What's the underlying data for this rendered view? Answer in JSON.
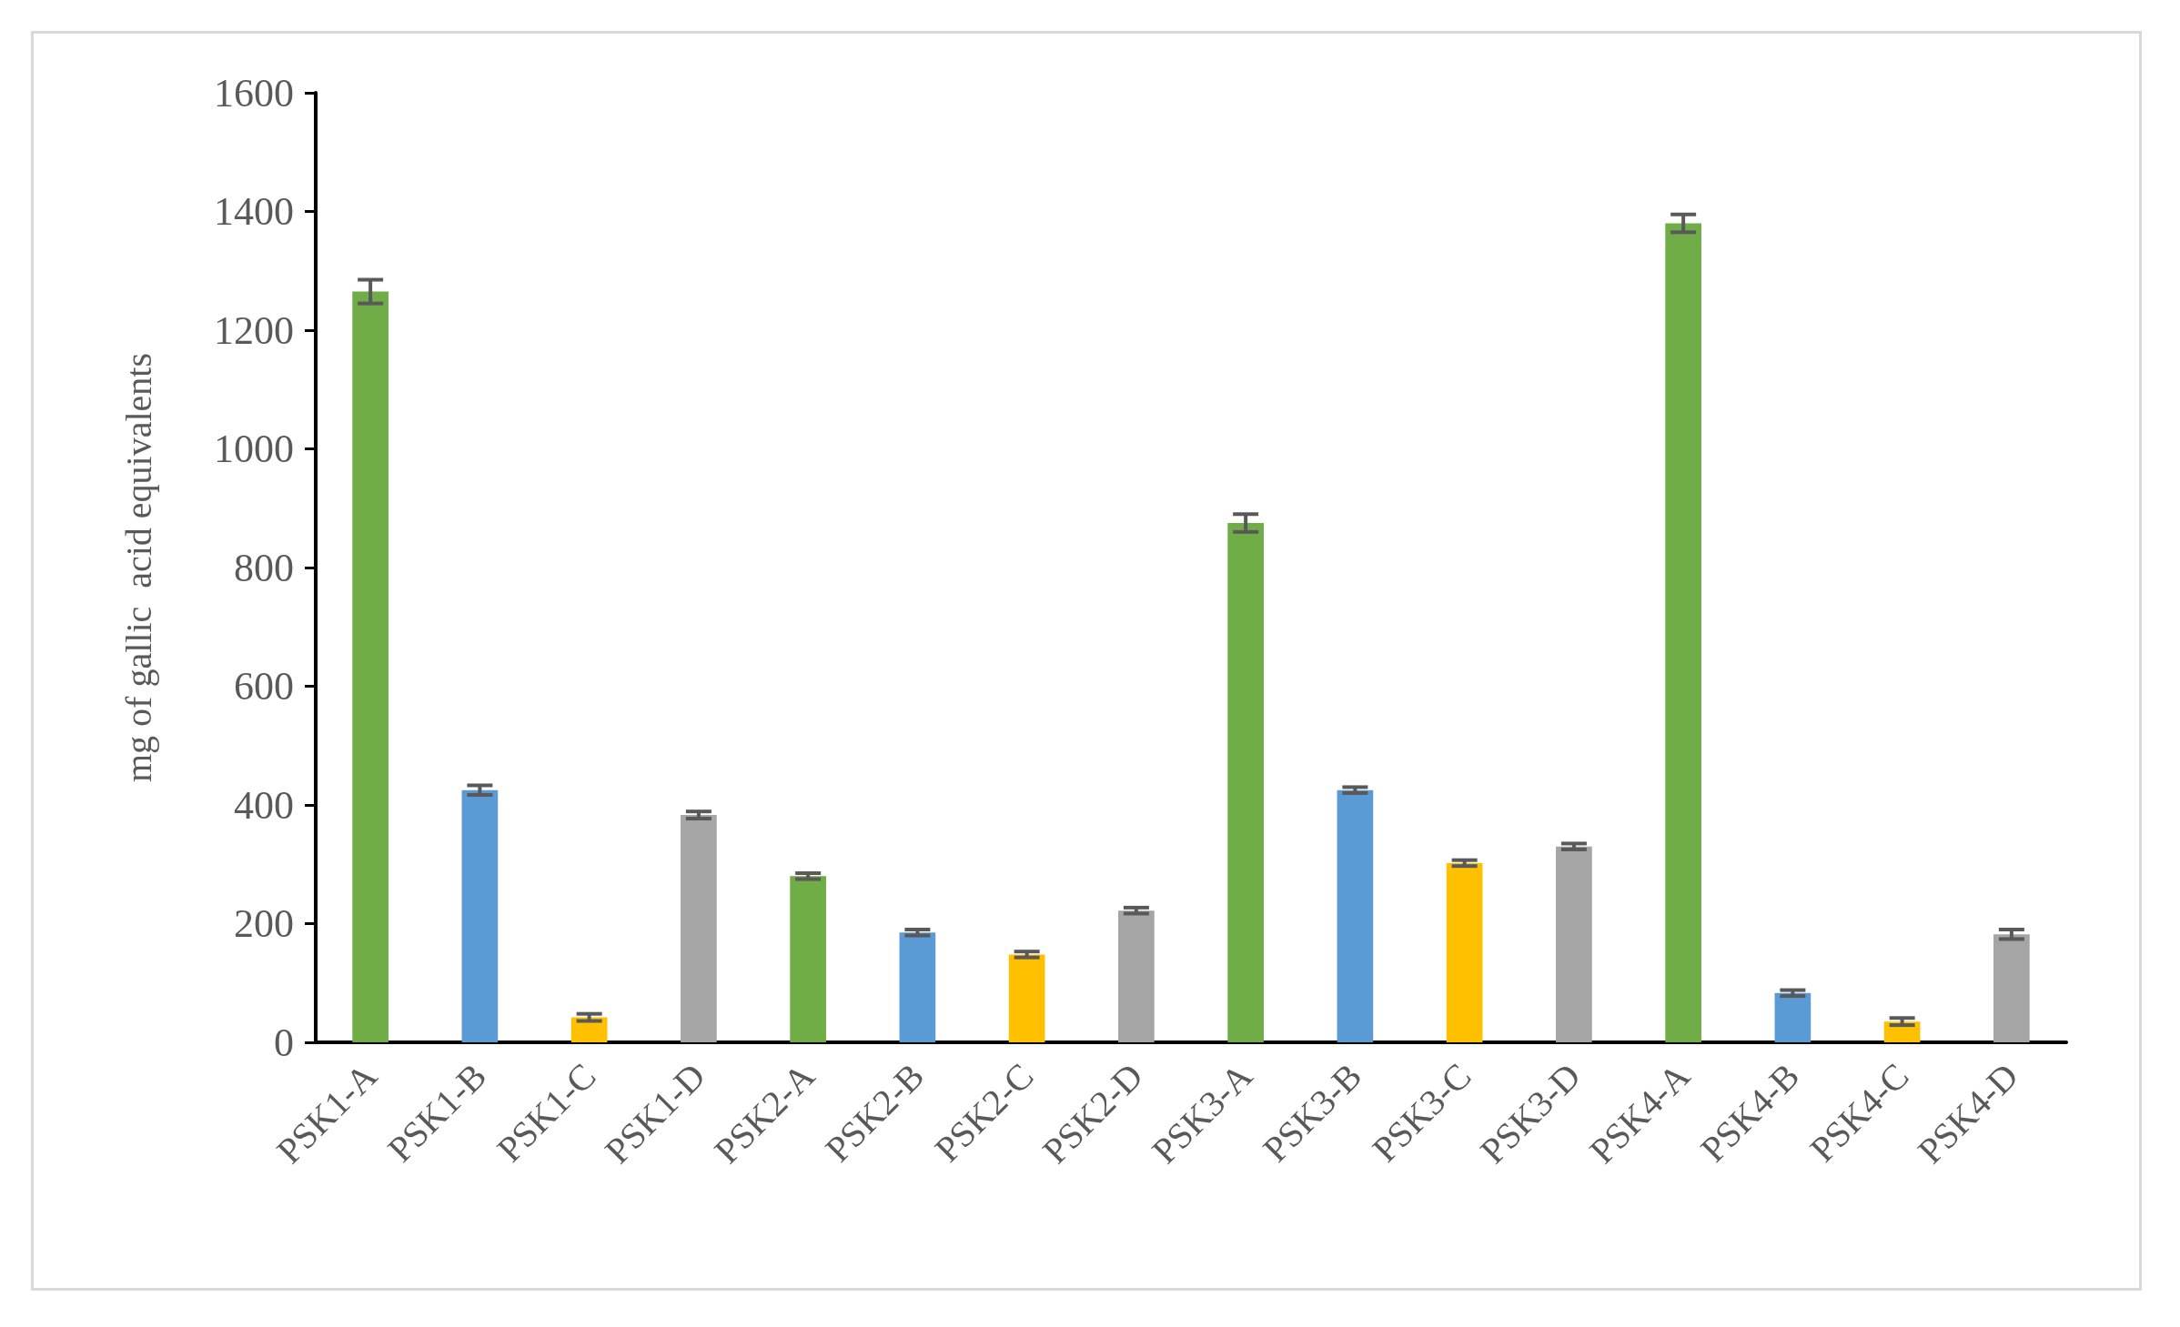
{
  "chart_data": {
    "type": "bar",
    "ylabel": "mg of gallic  acid equivalents",
    "categories": [
      "PSK1-A",
      "PSK1-B",
      "PSK1-C",
      "PSK1-D",
      "PSK2-A",
      "PSK2-B",
      "PSK2-C",
      "PSK2-D",
      "PSK3-A",
      "PSK3-B",
      "PSK3-C",
      "PSK3-D",
      "PSK4-A",
      "PSK4-B",
      "PSK4-C",
      "PSK4-D"
    ],
    "values": [
      1265,
      425,
      42,
      383,
      280,
      185,
      148,
      222,
      875,
      425,
      302,
      330,
      1380,
      83,
      35,
      182
    ],
    "errors": [
      20,
      8,
      6,
      6,
      5,
      5,
      5,
      5,
      15,
      5,
      5,
      5,
      15,
      5,
      6,
      8
    ],
    "colors": [
      "#70ad47",
      "#5b9bd5",
      "#ffc000",
      "#a5a5a5",
      "#70ad47",
      "#5b9bd5",
      "#ffc000",
      "#a5a5a5",
      "#70ad47",
      "#5b9bd5",
      "#ffc000",
      "#a5a5a5",
      "#70ad47",
      "#5b9bd5",
      "#ffc000",
      "#a5a5a5"
    ],
    "ylim": [
      0,
      1600
    ],
    "yticks": [
      0,
      200,
      400,
      600,
      800,
      1000,
      1200,
      1400,
      1600
    ],
    "grid": false
  }
}
